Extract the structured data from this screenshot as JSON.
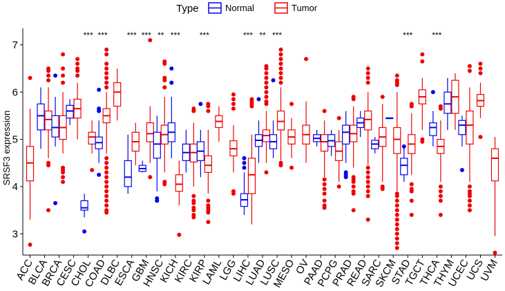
{
  "chart_data": {
    "type": "boxplot",
    "legend": {
      "title": "Type",
      "position": "top",
      "entries": [
        {
          "name": "Normal",
          "color": "#0000ee"
        },
        {
          "name": "Tumor",
          "color": "#ee0000"
        }
      ]
    },
    "ylabel": "SRSF3 expression",
    "xlabel": "",
    "ylim": [
      2.55,
      7.35
    ],
    "yticks": [
      3,
      4,
      5,
      6,
      7
    ],
    "grid": false,
    "categories": [
      "ACC",
      "BLCA",
      "BRCA",
      "CESC",
      "CHOL",
      "COAD",
      "DLBC",
      "ESCA",
      "GBM",
      "HNSC",
      "KICH",
      "KIRC",
      "KIRP",
      "LAML",
      "LGG",
      "LIHC",
      "LUAD",
      "LUSC",
      "MESO",
      "OV",
      "PAAD",
      "PCPG",
      "PRAD",
      "READ",
      "SARC",
      "SKCM",
      "STAD",
      "TGCT",
      "THCA",
      "THYM",
      "UCEC",
      "UCS",
      "UVM"
    ],
    "significance": [
      {
        "category": "CHOL",
        "label": "***"
      },
      {
        "category": "COAD",
        "label": "***"
      },
      {
        "category": "ESCA",
        "label": "***"
      },
      {
        "category": "GBM",
        "label": "***"
      },
      {
        "category": "HNSC",
        "label": "**"
      },
      {
        "category": "KICH",
        "label": "***"
      },
      {
        "category": "KIRP",
        "label": "***"
      },
      {
        "category": "LIHC",
        "label": "***"
      },
      {
        "category": "LUAD",
        "label": "**"
      },
      {
        "category": "LUSC",
        "label": "***"
      },
      {
        "category": "STAD",
        "label": "***"
      },
      {
        "category": "THCA",
        "label": "***"
      }
    ],
    "groups": [
      {
        "category": "ACC",
        "tumor": {
          "min": 3.3,
          "q1": 4.12,
          "median": 4.5,
          "q3": 4.85,
          "max": 5.65,
          "outliers": [
            6.3,
            2.77
          ]
        }
      },
      {
        "category": "BLCA",
        "normal": {
          "min": 4.8,
          "q1": 5.2,
          "median": 5.5,
          "q3": 5.75,
          "max": 6.1,
          "outliers": []
        },
        "tumor": {
          "min": 4.6,
          "q1": 5.2,
          "median": 5.42,
          "q3": 5.6,
          "max": 6.1,
          "outliers": [
            6.5,
            6.45,
            6.35,
            6.25,
            4.5,
            4.45,
            3.5
          ]
        }
      },
      {
        "category": "BRCA",
        "normal": {
          "min": 4.85,
          "q1": 5.05,
          "median": 5.25,
          "q3": 5.5,
          "max": 5.9,
          "outliers": [
            6.35,
            3.65
          ]
        },
        "tumor": {
          "min": 4.7,
          "q1": 5.0,
          "median": 5.25,
          "q3": 5.5,
          "max": 6.0,
          "outliers": [
            6.8,
            6.5,
            6.35,
            6.2,
            4.4,
            4.35,
            4.3,
            4.2,
            4.1
          ]
        }
      },
      {
        "category": "CESC",
        "normal": {
          "min": 5.3,
          "q1": 5.45,
          "median": 5.6,
          "q3": 5.72,
          "max": 5.85,
          "outliers": []
        },
        "tumor": {
          "min": 5.0,
          "q1": 5.45,
          "median": 5.65,
          "q3": 5.85,
          "max": 6.2,
          "outliers": [
            6.7,
            6.6,
            6.5,
            6.45,
            6.35
          ]
        }
      },
      {
        "category": "CHOL",
        "normal": {
          "min": 3.35,
          "q1": 3.5,
          "median": 3.55,
          "q3": 3.7,
          "max": 3.85,
          "outliers": [
            3.05
          ]
        },
        "tumor": {
          "min": 4.7,
          "q1": 4.9,
          "median": 5.05,
          "q3": 5.15,
          "max": 5.4,
          "outliers": [
            4.35
          ]
        }
      },
      {
        "category": "COAD",
        "normal": {
          "min": 4.5,
          "q1": 4.8,
          "median": 4.93,
          "q3": 5.05,
          "max": 5.4,
          "outliers": [
            6.05,
            5.65,
            5.6,
            4.25
          ]
        },
        "tumor": {
          "min": 4.7,
          "q1": 5.35,
          "median": 5.5,
          "q3": 5.65,
          "max": 6.0,
          "outliers": [
            6.9,
            6.8,
            6.6,
            6.5,
            6.4,
            6.3,
            6.2,
            6.1,
            4.6,
            4.5,
            4.4,
            4.3,
            4.2,
            4.1,
            4.0,
            3.9,
            3.8,
            3.7,
            3.6,
            3.5,
            3.45
          ]
        }
      },
      {
        "category": "DLBC",
        "tumor": {
          "min": 5.4,
          "q1": 5.7,
          "median": 6.0,
          "q3": 6.2,
          "max": 6.5,
          "outliers": []
        }
      },
      {
        "category": "ESCA",
        "normal": {
          "min": 3.85,
          "q1": 4.0,
          "median": 4.2,
          "q3": 4.55,
          "max": 5.1,
          "outliers": []
        },
        "tumor": {
          "min": 4.45,
          "q1": 4.75,
          "median": 4.95,
          "q3": 5.15,
          "max": 5.35,
          "outliers": []
        }
      },
      {
        "category": "GBM",
        "normal": {
          "min": 4.3,
          "q1": 4.32,
          "median": 4.38,
          "q3": 4.45,
          "max": 4.55,
          "outliers": []
        },
        "tumor": {
          "min": 4.5,
          "q1": 4.95,
          "median": 5.12,
          "q3": 5.35,
          "max": 5.7,
          "outliers": [
            7.1,
            4.2
          ]
        }
      },
      {
        "category": "HNSC",
        "normal": {
          "min": 3.9,
          "q1": 4.6,
          "median": 4.9,
          "q3": 5.15,
          "max": 5.5,
          "outliers": [
            3.75,
            3.7
          ]
        },
        "tumor": {
          "min": 4.3,
          "q1": 4.9,
          "median": 5.1,
          "q3": 5.3,
          "max": 5.9,
          "outliers": [
            6.65,
            6.6,
            6.3,
            6.25,
            6.1,
            4.1,
            4.05
          ]
        }
      },
      {
        "category": "KICH",
        "normal": {
          "min": 4.6,
          "q1": 4.95,
          "median": 5.15,
          "q3": 5.35,
          "max": 5.9,
          "outliers": [
            6.5,
            6.2
          ]
        },
        "tumor": {
          "min": 3.6,
          "q1": 3.9,
          "median": 4.05,
          "q3": 4.25,
          "max": 4.55,
          "outliers": [
            2.98
          ]
        }
      },
      {
        "category": "KIRC",
        "normal": {
          "min": 4.3,
          "q1": 4.55,
          "median": 4.72,
          "q3": 4.9,
          "max": 5.2,
          "outliers": []
        },
        "tumor": {
          "min": 4.0,
          "q1": 4.52,
          "median": 4.72,
          "q3": 4.9,
          "max": 5.35,
          "outliers": [
            5.65,
            5.6,
            3.8,
            3.7,
            3.65,
            3.55,
            3.5,
            3.4,
            3.35
          ]
        }
      },
      {
        "category": "KIRP",
        "normal": {
          "min": 4.2,
          "q1": 4.55,
          "median": 4.75,
          "q3": 4.95,
          "max": 5.2,
          "outliers": [
            5.75
          ]
        },
        "tumor": {
          "min": 3.85,
          "q1": 4.3,
          "median": 4.45,
          "q3": 4.65,
          "max": 5.2,
          "outliers": [
            5.75,
            5.7,
            5.6,
            3.7,
            3.6,
            3.55,
            3.5,
            3.45,
            3.25
          ]
        }
      },
      {
        "category": "LAML",
        "tumor": {
          "min": 4.95,
          "q1": 5.25,
          "median": 5.38,
          "q3": 5.5,
          "max": 5.7,
          "outliers": []
        }
      },
      {
        "category": "LGG",
        "tumor": {
          "min": 4.3,
          "q1": 4.65,
          "median": 4.8,
          "q3": 4.97,
          "max": 5.3,
          "outliers": [
            5.95,
            5.85,
            5.75,
            5.65,
            3.9,
            3.85
          ]
        }
      },
      {
        "category": "LIHC",
        "normal": {
          "min": 3.4,
          "q1": 3.58,
          "median": 3.72,
          "q3": 3.85,
          "max": 4.3,
          "outliers": [
            4.6,
            4.5,
            4.4
          ]
        },
        "tumor": {
          "min": 3.2,
          "q1": 3.85,
          "median": 4.25,
          "q3": 4.6,
          "max": 5.1,
          "outliers": [
            5.85,
            5.8,
            5.75,
            5.7
          ]
        }
      },
      {
        "category": "LUAD",
        "normal": {
          "min": 4.5,
          "q1": 4.85,
          "median": 4.98,
          "q3": 5.1,
          "max": 5.4,
          "outliers": [
            5.85
          ]
        },
        "tumor": {
          "min": 4.5,
          "q1": 4.95,
          "median": 5.08,
          "q3": 5.2,
          "max": 5.6,
          "outliers": [
            6.55,
            6.5,
            6.4,
            6.3,
            6.2,
            6.1,
            6.0,
            5.9,
            5.8,
            5.75,
            4.3
          ]
        }
      },
      {
        "category": "LUSC",
        "normal": {
          "min": 4.6,
          "q1": 4.8,
          "median": 4.95,
          "q3": 5.1,
          "max": 5.4,
          "outliers": [
            6.25
          ]
        },
        "tumor": {
          "min": 4.55,
          "q1": 5.2,
          "median": 5.38,
          "q3": 5.6,
          "max": 6.1,
          "outliers": [
            6.9,
            6.8,
            6.7,
            6.6,
            6.5,
            6.4,
            6.3,
            6.2,
            4.5,
            4.45
          ]
        }
      },
      {
        "category": "MESO",
        "tumor": {
          "min": 4.6,
          "q1": 4.9,
          "median": 5.05,
          "q3": 5.2,
          "max": 5.45,
          "outliers": [
            5.75,
            4.4
          ]
        }
      },
      {
        "category": "OV",
        "tumor": {
          "min": 4.5,
          "q1": 4.9,
          "median": 5.1,
          "q3": 5.3,
          "max": 5.8,
          "outliers": [
            6.7
          ]
        }
      },
      {
        "category": "PAAD",
        "normal": {
          "min": 4.85,
          "q1": 4.95,
          "median": 5.02,
          "q3": 5.1,
          "max": 5.2,
          "outliers": []
        },
        "tumor": {
          "min": 4.2,
          "q1": 4.75,
          "median": 4.95,
          "q3": 5.1,
          "max": 5.4,
          "outliers": [
            5.6,
            4.15,
            4.05,
            3.95,
            3.85,
            3.7,
            3.6,
            3.55
          ]
        }
      },
      {
        "category": "PCPG",
        "normal": {
          "min": 4.65,
          "q1": 4.85,
          "median": 4.97,
          "q3": 5.1,
          "max": 5.2,
          "outliers": []
        },
        "tumor": {
          "min": 4.1,
          "q1": 4.55,
          "median": 4.75,
          "q3": 4.95,
          "max": 5.2,
          "outliers": [
            5.45,
            4.0
          ]
        }
      },
      {
        "category": "PRAD",
        "normal": {
          "min": 4.5,
          "q1": 4.9,
          "median": 5.15,
          "q3": 5.3,
          "max": 5.6,
          "outliers": [
            4.3,
            4.25,
            4.2
          ]
        },
        "tumor": {
          "min": 4.4,
          "q1": 4.95,
          "median": 5.12,
          "q3": 5.3,
          "max": 5.7,
          "outliers": [
            5.9,
            5.85,
            4.2,
            4.15,
            4.1,
            4.0,
            3.9,
            3.85,
            3.5
          ]
        }
      },
      {
        "category": "READ",
        "normal": {
          "min": 5.05,
          "q1": 5.25,
          "median": 5.35,
          "q3": 5.45,
          "max": 5.6,
          "outliers": []
        },
        "tumor": {
          "min": 4.45,
          "q1": 5.2,
          "median": 5.42,
          "q3": 5.6,
          "max": 6.0,
          "outliers": [
            6.5,
            6.4,
            6.3,
            6.2,
            4.4,
            4.3,
            4.2,
            4.1,
            4.0,
            3.9,
            3.8,
            3.3
          ]
        }
      },
      {
        "category": "SARC",
        "normal": {
          "min": 4.7,
          "q1": 4.8,
          "median": 4.9,
          "q3": 4.98,
          "max": 5.05,
          "outliers": []
        },
        "tumor": {
          "min": 4.1,
          "q1": 4.85,
          "median": 5.05,
          "q3": 5.25,
          "max": 5.75,
          "outliers": [
            5.9,
            4.0,
            3.95
          ]
        }
      },
      {
        "category": "SKCM",
        "normal": {
          "min": 5.45,
          "q1": 5.45,
          "median": 5.45,
          "q3": 5.45,
          "max": 5.45,
          "outliers": []
        },
        "tumor": {
          "min": 3.9,
          "q1": 4.7,
          "median": 5.0,
          "q3": 5.25,
          "max": 6.0,
          "outliers": [
            6.35,
            6.25,
            6.2,
            6.15,
            3.85,
            3.8,
            3.7,
            3.6,
            3.5,
            3.4,
            3.3,
            3.2,
            3.1,
            3.0,
            2.9,
            2.8,
            2.7
          ]
        }
      },
      {
        "category": "STAD",
        "normal": {
          "min": 4.1,
          "q1": 4.25,
          "median": 4.45,
          "q3": 4.6,
          "max": 4.85,
          "outliers": [
            4.85
          ]
        },
        "tumor": {
          "min": 4.25,
          "q1": 4.7,
          "median": 4.9,
          "q3": 5.1,
          "max": 5.55,
          "outliers": [
            5.75,
            5.7,
            4.05,
            3.95,
            3.9,
            3.7,
            3.4
          ]
        }
      },
      {
        "category": "TGCT",
        "tumor": {
          "min": 5.2,
          "q1": 5.75,
          "median": 5.9,
          "q3": 6.05,
          "max": 6.3,
          "outliers": [
            6.8,
            6.65,
            5.0,
            4.95
          ]
        }
      },
      {
        "category": "THCA",
        "normal": {
          "min": 4.85,
          "q1": 5.08,
          "median": 5.25,
          "q3": 5.35,
          "max": 5.6,
          "outliers": [
            6.0
          ]
        },
        "tumor": {
          "min": 4.1,
          "q1": 4.7,
          "median": 4.85,
          "q3": 5.0,
          "max": 5.4,
          "outliers": [
            5.7,
            5.65,
            4.0,
            3.9,
            3.8,
            3.7,
            3.4
          ]
        }
      },
      {
        "category": "THYM",
        "normal": {
          "min": 5.2,
          "q1": 5.55,
          "median": 5.75,
          "q3": 6.0,
          "max": 6.3,
          "outliers": []
        },
        "tumor": {
          "min": 5.2,
          "q1": 5.55,
          "median": 5.9,
          "q3": 6.25,
          "max": 6.4,
          "outliers": []
        }
      },
      {
        "category": "UCEC",
        "normal": {
          "min": 4.85,
          "q1": 5.1,
          "median": 5.3,
          "q3": 5.4,
          "max": 5.5,
          "outliers": [
            4.35
          ]
        },
        "tumor": {
          "min": 4.1,
          "q1": 4.9,
          "median": 5.3,
          "q3": 5.6,
          "max": 6.1,
          "outliers": [
            6.55,
            6.45,
            4.0,
            3.9,
            3.85,
            3.8,
            3.7,
            3.6,
            3.5
          ]
        }
      },
      {
        "category": "UCS",
        "tumor": {
          "min": 5.45,
          "q1": 5.7,
          "median": 5.82,
          "q3": 5.95,
          "max": 6.2,
          "outliers": [
            6.6,
            6.5,
            6.4,
            5.05
          ]
        }
      },
      {
        "category": "UVM",
        "tumor": {
          "min": 2.95,
          "q1": 4.12,
          "median": 4.6,
          "q3": 4.8,
          "max": 5.05,
          "outliers": [
            2.6
          ]
        }
      }
    ]
  }
}
